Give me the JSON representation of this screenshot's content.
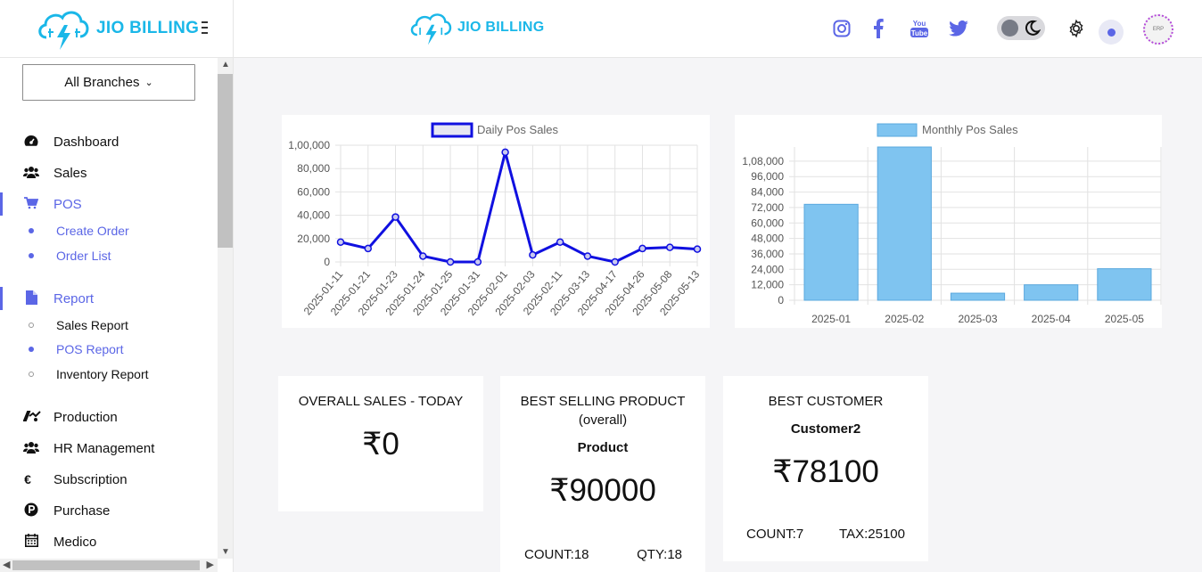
{
  "header": {
    "brand": "JIO BILLING",
    "brand_center": "JIO BILLING",
    "icons": [
      "instagram-icon",
      "facebook-icon",
      "youtube-icon",
      "twitter-icon",
      "theme-toggle",
      "gear-icon",
      "notification-dot",
      "avatar"
    ],
    "youtube_text": "You Tube",
    "avatar_text": "ERP"
  },
  "sidebar": {
    "branch_select": "All Branches",
    "items": [
      {
        "label": "Dashboard",
        "icon": "dashboard-icon"
      },
      {
        "label": "Sales",
        "icon": "users-icon"
      },
      {
        "label": "POS",
        "icon": "cart-icon",
        "active": true
      },
      {
        "label": "Report",
        "icon": "file-icon",
        "active": true
      },
      {
        "label": "Production",
        "icon": "production-icon"
      },
      {
        "label": "HR Management",
        "icon": "users-icon"
      },
      {
        "label": "Subscription",
        "icon": "euro-icon"
      },
      {
        "label": "Purchase",
        "icon": "purchase-icon"
      },
      {
        "label": "Medico",
        "icon": "calendar-icon"
      }
    ],
    "pos_sub": [
      "Create Order",
      "Order List"
    ],
    "report_sub": [
      "Sales Report",
      "POS Report",
      "Inventory Report"
    ],
    "euro_glyph": "€"
  },
  "chart_data": [
    {
      "type": "line",
      "title": "Daily Pos Sales",
      "series": [
        {
          "name": "Daily Pos Sales",
          "color": "#1010e0"
        }
      ],
      "x": [
        "2025-01-11",
        "2025-01-21",
        "2025-01-23",
        "2025-01-24",
        "2025-01-25",
        "2025-01-31",
        "2025-02-01",
        "2025-02-03",
        "2025-02-11",
        "2025-03-13",
        "2025-04-17",
        "2025-04-26",
        "2025-05-08",
        "2025-05-13"
      ],
      "values": [
        17000,
        11500,
        38500,
        5000,
        0,
        0,
        94000,
        6000,
        17000,
        5000,
        0,
        11500,
        12500,
        11000
      ],
      "ylim": [
        0,
        100000
      ],
      "yticks": [
        "1,00,000",
        "80,000",
        "60,000",
        "40,000",
        "20,000",
        "0"
      ],
      "grid": true,
      "legend": "top"
    },
    {
      "type": "bar",
      "title": "Monthly Pos Sales",
      "series": [
        {
          "name": "Monthly Pos Sales",
          "color": "#7fc4f0"
        }
      ],
      "categories": [
        "2025-01",
        "2025-02",
        "2025-03",
        "2025-04",
        "2025-05"
      ],
      "values": [
        74500,
        119000,
        5500,
        12000,
        24500
      ],
      "ylim": [
        0,
        119000
      ],
      "yticks": [
        "1,08,000",
        "96,000",
        "84,000",
        "72,000",
        "60,000",
        "48,000",
        "36,000",
        "24,000",
        "12,000",
        "0"
      ],
      "grid": true,
      "legend": "top"
    }
  ],
  "stats": {
    "today": {
      "title": "OVERALL SALES - TODAY",
      "value": "₹0"
    },
    "product": {
      "title": "BEST SELLING PRODUCT",
      "sub": "(overall)",
      "name": "Product",
      "value": "₹90000",
      "count": "COUNT:18",
      "qty": "QTY:18"
    },
    "customer": {
      "title": "BEST CUSTOMER",
      "name": "Customer2",
      "value": "₹78100",
      "count": "COUNT:7",
      "tax": "TAX:25100"
    }
  }
}
